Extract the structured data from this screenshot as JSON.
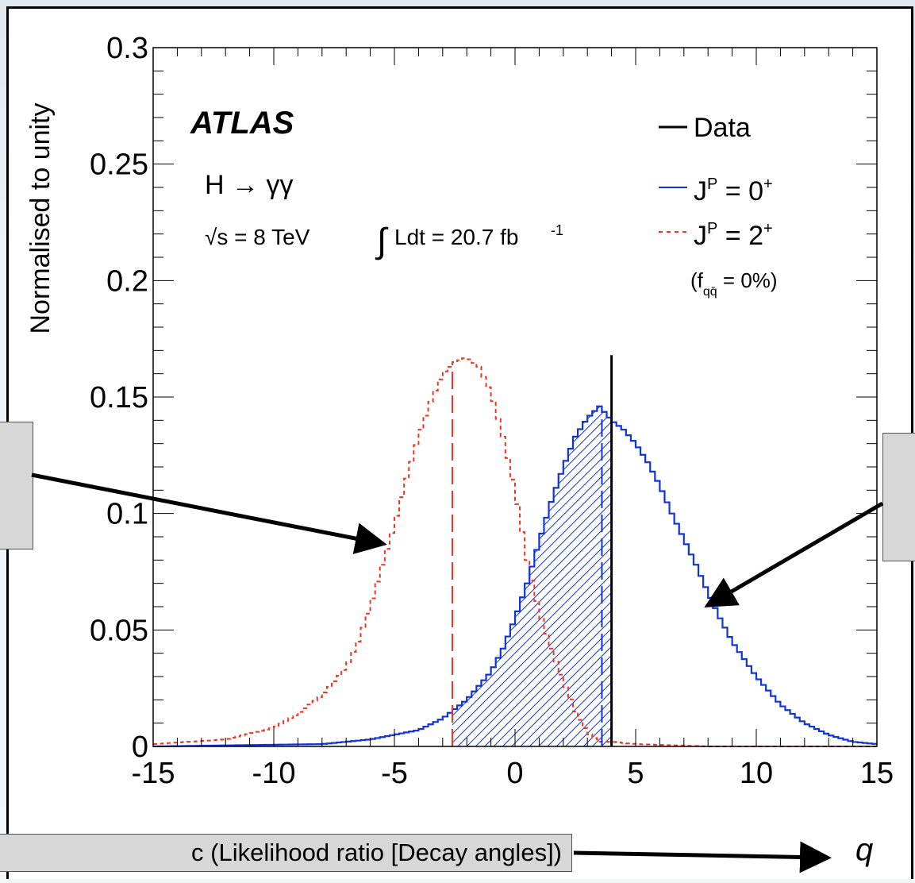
{
  "chart_data": {
    "type": "line",
    "xlabel": "",
    "ylabel": "Normalised to unity",
    "xlim": [
      -15,
      15
    ],
    "ylim": [
      0,
      0.3
    ],
    "x_ticks": [
      "-15",
      "-10",
      "-5",
      "0",
      "5",
      "10",
      "15"
    ],
    "y_ticks": [
      "0",
      "0.05",
      "0.1",
      "0.15",
      "0.2",
      "0.25",
      "0.3"
    ],
    "annotations": {
      "experiment": "ATLAS",
      "process": "H → γγ",
      "energy": "√s = 8 TeV",
      "lumi_integral": "Ldt = 20.7 fb",
      "lumi_exp": "-1"
    },
    "legend": [
      {
        "name": "Data",
        "color": "#000000",
        "style": "solid"
      },
      {
        "name": "JP = 0+",
        "label_main": "J",
        "label_sup": "P",
        "label_eq": " = 0",
        "label_sup2": "+",
        "color": "#1133dd",
        "style": "solid"
      },
      {
        "name": "JP = 2+",
        "label_main": "J",
        "label_sup": "P",
        "label_eq": " = 2",
        "label_sup2": "+",
        "color": "#ee3322",
        "style": "dashed",
        "note": "(f = 0%)",
        "note_sub": "qq̄"
      }
    ],
    "data_line_x": 4.0,
    "data_line_top": 0.168,
    "median_0plus": 3.6,
    "median_2plus": -2.6,
    "series": [
      {
        "name": "JP = 2+",
        "color": "#ee3322",
        "x": [
          -15,
          -12,
          -10,
          -9,
          -8,
          -7,
          -6.5,
          -6,
          -5.5,
          -5,
          -4.5,
          -4,
          -3.5,
          -3,
          -2.5,
          -2,
          -1.5,
          -1,
          -0.5,
          0,
          0.5,
          1,
          1.5,
          2,
          2.5,
          3,
          3.5,
          4,
          5,
          8,
          15
        ],
        "values": [
          0.001,
          0.003,
          0.008,
          0.014,
          0.022,
          0.034,
          0.045,
          0.06,
          0.078,
          0.095,
          0.115,
          0.133,
          0.148,
          0.16,
          0.165,
          0.167,
          0.163,
          0.152,
          0.133,
          0.11,
          0.08,
          0.058,
          0.042,
          0.028,
          0.015,
          0.006,
          0.002,
          0.002,
          0.001,
          0.0,
          0.0
        ]
      },
      {
        "name": "JP = 0+",
        "color": "#1133dd",
        "x": [
          -15,
          -8,
          -6,
          -4,
          -3,
          -2,
          -1,
          -0.5,
          0,
          0.5,
          1,
          1.5,
          2,
          2.5,
          3,
          3.5,
          4,
          4.5,
          5,
          5.5,
          6,
          6.5,
          7,
          7.5,
          8,
          8.5,
          9,
          10,
          11,
          12,
          13,
          14,
          15
        ],
        "values": [
          0.0,
          0.001,
          0.003,
          0.007,
          0.012,
          0.02,
          0.032,
          0.042,
          0.055,
          0.07,
          0.088,
          0.105,
          0.12,
          0.133,
          0.141,
          0.146,
          0.14,
          0.136,
          0.13,
          0.122,
          0.112,
          0.1,
          0.089,
          0.078,
          0.066,
          0.055,
          0.045,
          0.03,
          0.018,
          0.01,
          0.005,
          0.002,
          0.001
        ]
      }
    ]
  },
  "callouts": {
    "bottom_text": "c (Likelihood ratio [Decay angles])",
    "q_symbol": "q"
  }
}
